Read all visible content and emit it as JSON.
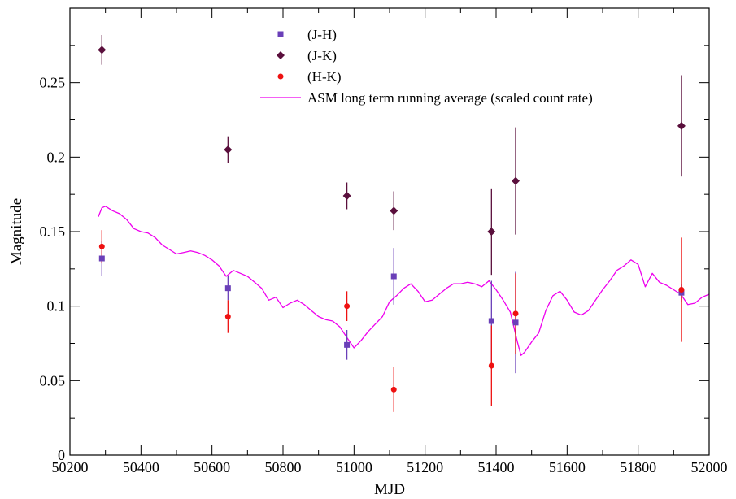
{
  "chart_data": {
    "type": "scatter",
    "title": "",
    "xlabel": "MJD",
    "ylabel": "Magnitude",
    "xlim": [
      50200,
      52000
    ],
    "ylim": [
      0,
      0.3
    ],
    "xticks": [
      "50200",
      "50400",
      "50600",
      "50800",
      "51000",
      "51200",
      "51400",
      "51600",
      "51800",
      "52000"
    ],
    "yticks": [
      "0",
      "0.05",
      "0.1",
      "0.15",
      "0.2",
      "0.25"
    ],
    "grid": false,
    "legend_position": "top-center",
    "series": [
      {
        "name": "(J-H)",
        "marker": "square",
        "color": "#6a3fb8",
        "points": [
          {
            "x": 50290,
            "y": 0.132,
            "err": 0.012
          },
          {
            "x": 50645,
            "y": 0.112,
            "err": 0.008
          },
          {
            "x": 50980,
            "y": 0.074,
            "err": 0.01
          },
          {
            "x": 51112,
            "y": 0.12,
            "err": 0.019
          },
          {
            "x": 51387,
            "y": 0.09,
            "err": 0.027
          },
          {
            "x": 51455,
            "y": 0.089,
            "err": 0.034
          },
          {
            "x": 51922,
            "y": 0.109,
            "err": 0.006
          }
        ]
      },
      {
        "name": "(J-K)",
        "marker": "diamond",
        "color": "#5a0f3c",
        "points": [
          {
            "x": 50290,
            "y": 0.272,
            "err": 0.01
          },
          {
            "x": 50645,
            "y": 0.205,
            "err": 0.009
          },
          {
            "x": 50980,
            "y": 0.174,
            "err": 0.009
          },
          {
            "x": 51112,
            "y": 0.164,
            "err": 0.013
          },
          {
            "x": 51387,
            "y": 0.15,
            "err": 0.029
          },
          {
            "x": 51455,
            "y": 0.184,
            "err": 0.036
          },
          {
            "x": 51922,
            "y": 0.221,
            "err": 0.034
          }
        ]
      },
      {
        "name": "(H-K)",
        "marker": "circle",
        "color": "#ee1111",
        "points": [
          {
            "x": 50290,
            "y": 0.14,
            "err": 0.011
          },
          {
            "x": 50645,
            "y": 0.093,
            "err": 0.011
          },
          {
            "x": 50980,
            "y": 0.1,
            "err": 0.01
          },
          {
            "x": 51112,
            "y": 0.044,
            "err": 0.015
          },
          {
            "x": 51387,
            "y": 0.06,
            "err": 0.027
          },
          {
            "x": 51455,
            "y": 0.095,
            "err": 0.027
          },
          {
            "x": 51922,
            "y": 0.111,
            "err": 0.035
          }
        ]
      },
      {
        "name": "ASM long term running average (scaled count rate)",
        "marker": "line",
        "color": "#ee00ee",
        "points": [
          {
            "x": 50280,
            "y": 0.16
          },
          {
            "x": 50290,
            "y": 0.166
          },
          {
            "x": 50300,
            "y": 0.167
          },
          {
            "x": 50320,
            "y": 0.164
          },
          {
            "x": 50340,
            "y": 0.162
          },
          {
            "x": 50360,
            "y": 0.158
          },
          {
            "x": 50380,
            "y": 0.152
          },
          {
            "x": 50400,
            "y": 0.15
          },
          {
            "x": 50420,
            "y": 0.149
          },
          {
            "x": 50440,
            "y": 0.146
          },
          {
            "x": 50460,
            "y": 0.141
          },
          {
            "x": 50480,
            "y": 0.138
          },
          {
            "x": 50500,
            "y": 0.135
          },
          {
            "x": 50520,
            "y": 0.136
          },
          {
            "x": 50540,
            "y": 0.137
          },
          {
            "x": 50560,
            "y": 0.136
          },
          {
            "x": 50580,
            "y": 0.134
          },
          {
            "x": 50600,
            "y": 0.131
          },
          {
            "x": 50620,
            "y": 0.127
          },
          {
            "x": 50640,
            "y": 0.12
          },
          {
            "x": 50660,
            "y": 0.124
          },
          {
            "x": 50680,
            "y": 0.122
          },
          {
            "x": 50700,
            "y": 0.12
          },
          {
            "x": 50720,
            "y": 0.116
          },
          {
            "x": 50740,
            "y": 0.112
          },
          {
            "x": 50760,
            "y": 0.104
          },
          {
            "x": 50780,
            "y": 0.106
          },
          {
            "x": 50800,
            "y": 0.099
          },
          {
            "x": 50820,
            "y": 0.102
          },
          {
            "x": 50840,
            "y": 0.104
          },
          {
            "x": 50860,
            "y": 0.101
          },
          {
            "x": 50880,
            "y": 0.097
          },
          {
            "x": 50900,
            "y": 0.093
          },
          {
            "x": 50920,
            "y": 0.091
          },
          {
            "x": 50940,
            "y": 0.09
          },
          {
            "x": 50960,
            "y": 0.086
          },
          {
            "x": 50980,
            "y": 0.079
          },
          {
            "x": 51000,
            "y": 0.072
          },
          {
            "x": 51020,
            "y": 0.077
          },
          {
            "x": 51040,
            "y": 0.083
          },
          {
            "x": 51060,
            "y": 0.088
          },
          {
            "x": 51080,
            "y": 0.093
          },
          {
            "x": 51100,
            "y": 0.103
          },
          {
            "x": 51120,
            "y": 0.107
          },
          {
            "x": 51140,
            "y": 0.112
          },
          {
            "x": 51160,
            "y": 0.115
          },
          {
            "x": 51180,
            "y": 0.11
          },
          {
            "x": 51200,
            "y": 0.103
          },
          {
            "x": 51220,
            "y": 0.104
          },
          {
            "x": 51240,
            "y": 0.108
          },
          {
            "x": 51260,
            "y": 0.112
          },
          {
            "x": 51280,
            "y": 0.115
          },
          {
            "x": 51300,
            "y": 0.115
          },
          {
            "x": 51320,
            "y": 0.116
          },
          {
            "x": 51340,
            "y": 0.115
          },
          {
            "x": 51360,
            "y": 0.113
          },
          {
            "x": 51380,
            "y": 0.117
          },
          {
            "x": 51400,
            "y": 0.111
          },
          {
            "x": 51420,
            "y": 0.104
          },
          {
            "x": 51440,
            "y": 0.096
          },
          {
            "x": 51460,
            "y": 0.076
          },
          {
            "x": 51470,
            "y": 0.067
          },
          {
            "x": 51480,
            "y": 0.069
          },
          {
            "x": 51500,
            "y": 0.076
          },
          {
            "x": 51520,
            "y": 0.082
          },
          {
            "x": 51540,
            "y": 0.097
          },
          {
            "x": 51560,
            "y": 0.107
          },
          {
            "x": 51580,
            "y": 0.11
          },
          {
            "x": 51600,
            "y": 0.104
          },
          {
            "x": 51620,
            "y": 0.096
          },
          {
            "x": 51640,
            "y": 0.094
          },
          {
            "x": 51660,
            "y": 0.097
          },
          {
            "x": 51680,
            "y": 0.104
          },
          {
            "x": 51700,
            "y": 0.111
          },
          {
            "x": 51720,
            "y": 0.117
          },
          {
            "x": 51740,
            "y": 0.124
          },
          {
            "x": 51760,
            "y": 0.127
          },
          {
            "x": 51780,
            "y": 0.131
          },
          {
            "x": 51800,
            "y": 0.128
          },
          {
            "x": 51820,
            "y": 0.113
          },
          {
            "x": 51840,
            "y": 0.122
          },
          {
            "x": 51860,
            "y": 0.116
          },
          {
            "x": 51880,
            "y": 0.114
          },
          {
            "x": 51900,
            "y": 0.111
          },
          {
            "x": 51920,
            "y": 0.108
          },
          {
            "x": 51940,
            "y": 0.101
          },
          {
            "x": 51960,
            "y": 0.102
          },
          {
            "x": 51980,
            "y": 0.106
          },
          {
            "x": 52000,
            "y": 0.108
          }
        ]
      }
    ]
  }
}
